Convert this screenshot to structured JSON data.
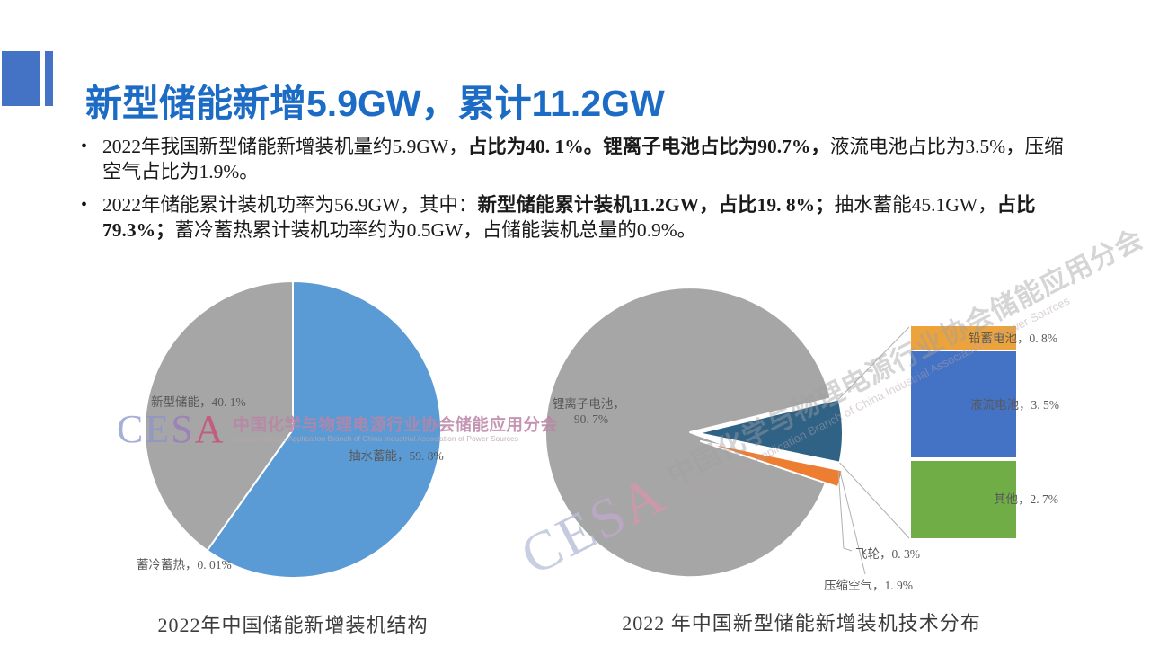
{
  "title": {
    "text": "新型储能新增5.9GW，累计11.2GW",
    "color": "#1C6BC4",
    "accent_color": "#4472C4"
  },
  "bullets": [
    {
      "marker": "•",
      "segments": [
        {
          "t": "2022年我国新型储能新增装机量约5.9GW，",
          "b": false
        },
        {
          "t": "占比为40. 1%。",
          "b": true
        },
        {
          "t": "锂离子电池占比为90.7%，",
          "b": true
        },
        {
          "t": "液流电池占比为3.5%，压缩空气占比为1.9%。",
          "b": false
        }
      ]
    },
    {
      "marker": "•",
      "segments": [
        {
          "t": "2022年储能累计装机功率为56.9GW，其中：",
          "b": false
        },
        {
          "t": "新型储能累计装机11.2GW，占比19. 8%；",
          "b": true
        },
        {
          "t": "抽水蓄能45.1GW，",
          "b": false
        },
        {
          "t": "占比79.3%；",
          "b": true
        },
        {
          "t": "蓄冷蓄热累计装机功率约为0.5GW，占储能装机总量的0.9%。",
          "b": false
        }
      ]
    }
  ],
  "watermark": {
    "letters": [
      "C",
      "E",
      "S",
      "A"
    ],
    "cn": "中国化学与物理电源行业协会储能应用分会",
    "en": "Energy Storage Application Branch of China Industrial Association of Power Sources"
  },
  "chart_data": [
    {
      "type": "pie",
      "title": "2022年中国储能新增装机结构",
      "start_angle_deg": 0,
      "direction": "clockwise",
      "legend": "none",
      "slices": [
        {
          "label": "抽水蓄能",
          "value": 59.8,
          "display": "抽水蓄能，59. 8%",
          "color": "#5B9BD5"
        },
        {
          "label": "蓄冷蓄热",
          "value": 0.01,
          "display": "蓄冷蓄热，0. 01%",
          "color": "#FFFFFF"
        },
        {
          "label": "新型储能",
          "value": 40.1,
          "display": "新型储能，40. 1%",
          "color": "#A6A6A6"
        }
      ]
    },
    {
      "type": "bar_of_pie",
      "title": "2022 年中国新型储能新增装机技术分布",
      "main_pie": [
        {
          "label": "锂离子电池",
          "value": 90.7,
          "display_lines": [
            "锂离子电池，",
            "90. 7%"
          ],
          "color": "#A6A6A6"
        },
        {
          "label": "压缩空气",
          "value": 1.9,
          "display": "压缩空气，1. 9%",
          "color": "#ED7D31"
        },
        {
          "label": "飞轮",
          "value": 0.3,
          "display": "飞轮，0. 3%",
          "color": "#FFFFFF"
        }
      ],
      "bar_group": {
        "total_value": 7.0,
        "group_slice_color": "#2F6285",
        "segments": [
          {
            "label": "铅蓄电池",
            "value": 0.8,
            "display": "铅蓄电池，0. 8%",
            "color": "#ECA33B"
          },
          {
            "label": "液流电池",
            "value": 3.5,
            "display": "液流电池，3. 5%",
            "color": "#4472C4"
          },
          {
            "label": "其他",
            "value": 2.7,
            "display": "其他，2. 7%",
            "color": "#70AD47"
          }
        ]
      }
    }
  ]
}
